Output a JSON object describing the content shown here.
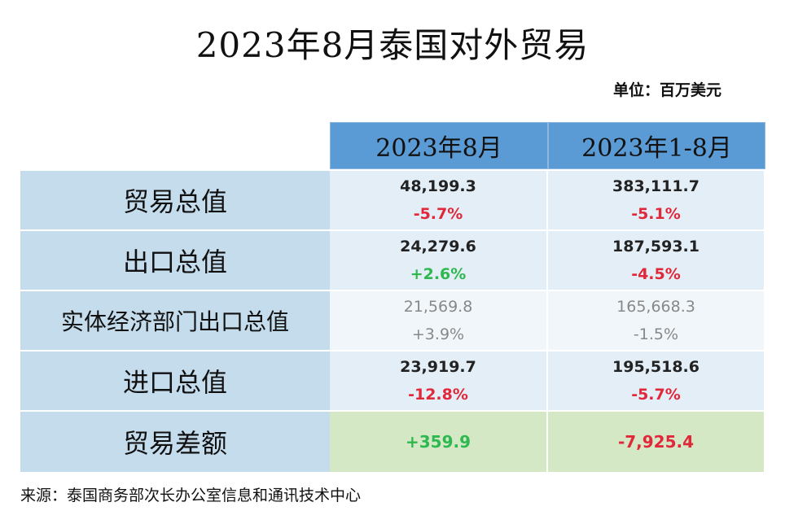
{
  "title": "2023年8月泰国对外贸易",
  "unit": "单位：百万美元",
  "columns": [
    "2023年8月",
    "2023年1-8月"
  ],
  "rows": [
    {
      "label": "贸易总值",
      "aug": "48,199.3",
      "aug_change": "-5.7%",
      "ytd": "383,111.7",
      "ytd_change": "-5.1%"
    },
    {
      "label": "出口总值",
      "aug": "24,279.6",
      "aug_change": "+2.6%",
      "ytd": "187,593.1",
      "ytd_change": "-4.5%"
    },
    {
      "label": "实体经济部门出口总值",
      "aug": "21,569.8",
      "aug_change": "+3.9%",
      "ytd": "165,668.3",
      "ytd_change": "-1.5%"
    },
    {
      "label": "进口总值",
      "aug": "23,919.7",
      "aug_change": "-12.8%",
      "ytd": "195,518.6",
      "ytd_change": "-5.7%"
    },
    {
      "label": "贸易差额",
      "aug": "+359.9",
      "ytd": "-7,925.4"
    }
  ],
  "colors": {
    "header": "#5b9bd5",
    "label_bg": "#c4dcec",
    "positive": "#2eb84f",
    "negative": "#e0283a",
    "balance_bg": "#d4e8c6"
  },
  "source": "来源：泰国商务部次长办公室信息和通讯技术中心"
}
